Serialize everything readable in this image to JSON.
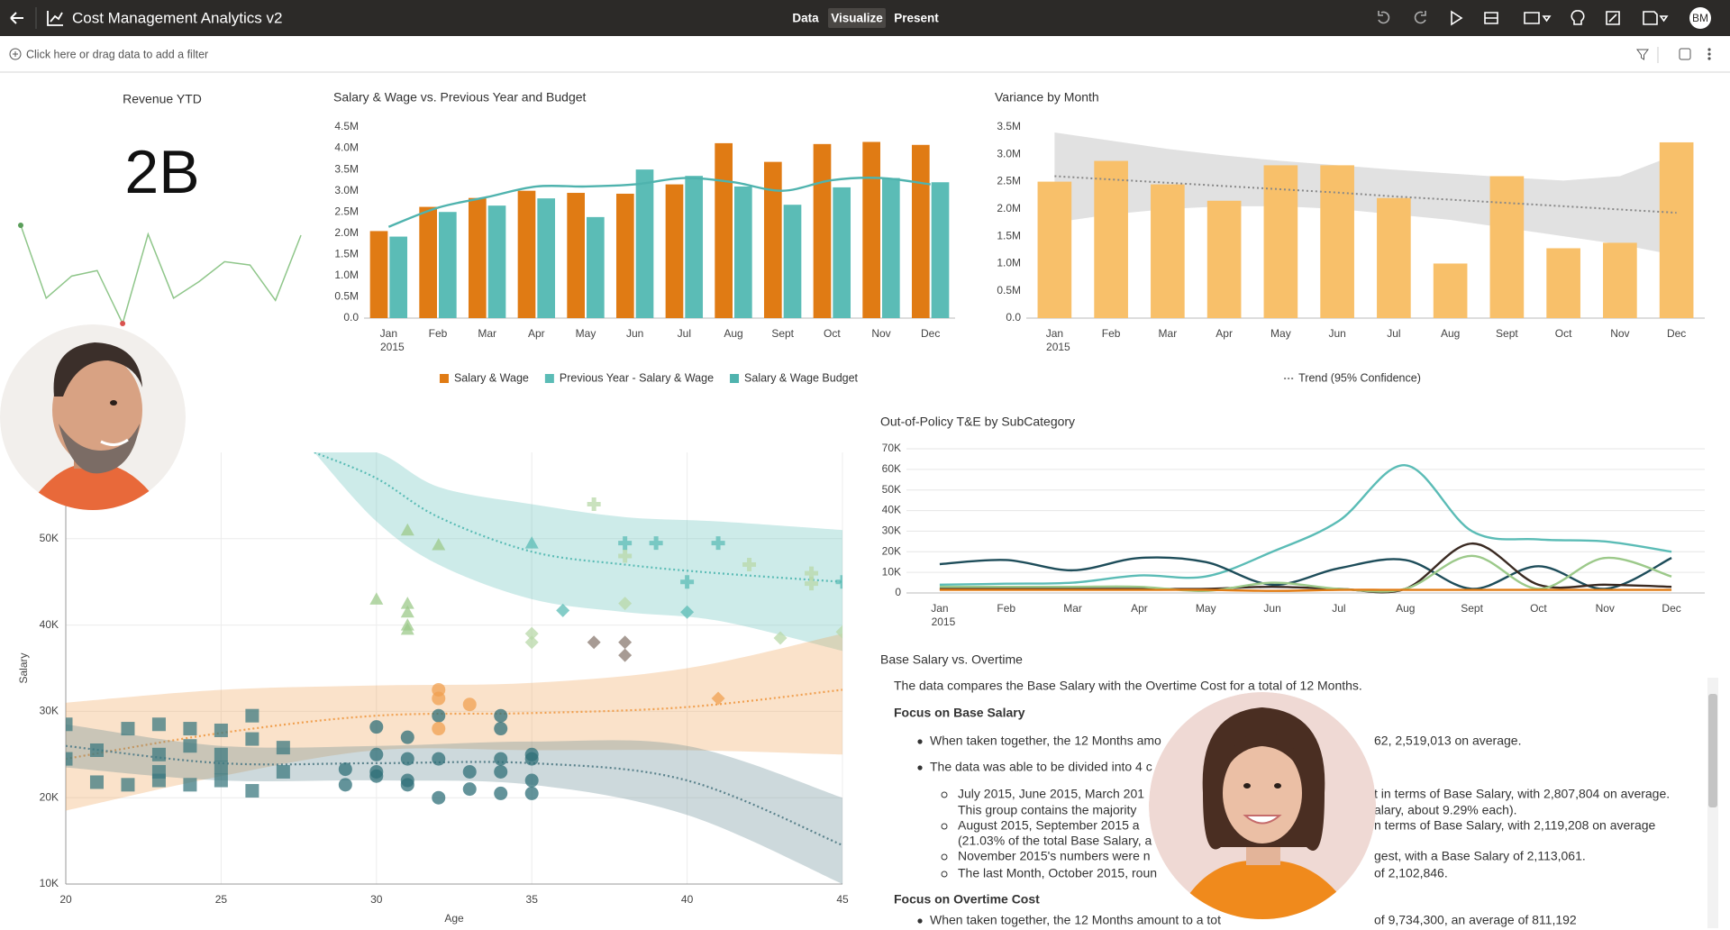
{
  "header": {
    "title": "Cost Management Analytics v2",
    "tabs": [
      "Data",
      "Visualize",
      "Present"
    ],
    "active_tab": 1,
    "user": "BM"
  },
  "filter_bar": {
    "placeholder": "Click here or drag data to add a filter"
  },
  "kpi": {
    "title": "Revenue YTD",
    "value": "2B",
    "sparkline": {
      "values": [
        96,
        30,
        50,
        55,
        7,
        88,
        30,
        45,
        63,
        60,
        28,
        87
      ],
      "color": "#8fc68a",
      "start_color": "#5a9e5a",
      "low_color": "#d9534f"
    }
  },
  "chart_data": [
    {
      "type": "combo",
      "title": "Salary & Wage vs. Previous Year and Budget",
      "categories": [
        "Jan",
        "Feb",
        "Mar",
        "Apr",
        "May",
        "Jun",
        "Jul",
        "Aug",
        "Sept",
        "Oct",
        "Nov",
        "Dec"
      ],
      "x_year_label": "2015",
      "ylim": [
        0,
        4500000
      ],
      "yticks": [
        {
          "value": 0,
          "label": "0.0"
        },
        {
          "value": 500000,
          "label": "0.5M"
        },
        {
          "value": 1000000,
          "label": "1.0M"
        },
        {
          "value": 1500000,
          "label": "1.5M"
        },
        {
          "value": 2000000,
          "label": "2.0M"
        },
        {
          "value": 2500000,
          "label": "2.5M"
        },
        {
          "value": 3000000,
          "label": "3.0M"
        },
        {
          "value": 3500000,
          "label": "3.5M"
        },
        {
          "value": 4000000,
          "label": "4.0M"
        },
        {
          "value": 4500000,
          "label": "4.5M"
        }
      ],
      "grid": false,
      "legend": "bottom",
      "series": [
        {
          "name": "Salary & Wage",
          "kind": "bar",
          "color": "#e07b14",
          "values": [
            2050000,
            2620000,
            2830000,
            3000000,
            2950000,
            2930000,
            3150000,
            4120000,
            3680000,
            4100000,
            4150000,
            4080000
          ]
        },
        {
          "name": "Previous Year - Salary & Wage",
          "kind": "bar",
          "color": "#5bbcb6",
          "values": [
            1920000,
            2500000,
            2650000,
            2820000,
            2380000,
            3500000,
            3350000,
            3100000,
            2670000,
            3080000,
            3300000,
            3200000
          ]
        },
        {
          "name": "Salary & Wage Budget",
          "kind": "line",
          "color": "#4fb3ae",
          "values": [
            2150000,
            2600000,
            2850000,
            3100000,
            3100000,
            3150000,
            3300000,
            3200000,
            3000000,
            3250000,
            3300000,
            3150000
          ]
        }
      ]
    },
    {
      "type": "bar",
      "title": "Variance by Month",
      "categories": [
        "Jan",
        "Feb",
        "Mar",
        "Apr",
        "May",
        "Jun",
        "Jul",
        "Aug",
        "Sept",
        "Oct",
        "Nov",
        "Dec"
      ],
      "x_year_label": "2015",
      "ylim": [
        0,
        3500000
      ],
      "yticks": [
        {
          "value": 0,
          "label": "0.0"
        },
        {
          "value": 500000,
          "label": "0.5M"
        },
        {
          "value": 1000000,
          "label": "1.0M"
        },
        {
          "value": 1500000,
          "label": "1.5M"
        },
        {
          "value": 2000000,
          "label": "2.0M"
        },
        {
          "value": 2500000,
          "label": "2.5M"
        },
        {
          "value": 3000000,
          "label": "3.0M"
        },
        {
          "value": 3500000,
          "label": "3.5M"
        }
      ],
      "grid": false,
      "legend": "bottom",
      "series": [
        {
          "kind": "bar",
          "color": "#f8c06a",
          "values": [
            2500000,
            2880000,
            2450000,
            2150000,
            2800000,
            2800000,
            2200000,
            1000000,
            2600000,
            1280000,
            1380000,
            3220000
          ]
        }
      ],
      "trend": {
        "name": "Trend (95% Confidence)",
        "color": "#888888",
        "band_color": "#d9d9d9",
        "values": [
          2600000,
          2540000,
          2480000,
          2420000,
          2360000,
          2300000,
          2230000,
          2170000,
          2110000,
          2050000,
          1990000,
          1930000
        ],
        "lower": [
          1750000,
          1900000,
          2000000,
          2050000,
          2050000,
          2000000,
          1900000,
          1800000,
          1650000,
          1500000,
          1350000,
          1150000
        ],
        "upper": [
          3400000,
          3250000,
          3100000,
          2980000,
          2880000,
          2800000,
          2720000,
          2650000,
          2580000,
          2520000,
          2600000,
          3000000
        ]
      }
    },
    {
      "type": "line",
      "title": "Out-of-Policy T&E by SubCategory",
      "categories": [
        "Jan",
        "Feb",
        "Mar",
        "Apr",
        "May",
        "Jun",
        "Jul",
        "Aug",
        "Sept",
        "Oct",
        "Nov",
        "Dec"
      ],
      "x_year_label": "2015",
      "ylim": [
        0,
        70000
      ],
      "yticks": [
        0,
        {
          "value": 10000,
          "label": "10K"
        },
        {
          "value": 20000,
          "label": "20K"
        },
        {
          "value": 30000,
          "label": "30K"
        },
        {
          "value": 40000,
          "label": "40K"
        },
        {
          "value": 50000,
          "label": "50K"
        },
        {
          "value": 60000,
          "label": "60K"
        },
        {
          "value": 70000,
          "label": "70K"
        }
      ],
      "grid": true,
      "series": [
        {
          "kind": "line",
          "color": "#5bbcb6",
          "values": [
            4000,
            4500,
            5000,
            8500,
            8000,
            20000,
            35000,
            62000,
            30000,
            26000,
            25000,
            20000
          ]
        },
        {
          "kind": "line",
          "color": "#1e4d5a",
          "values": [
            14000,
            16000,
            11000,
            17000,
            15000,
            4000,
            12000,
            16000,
            2000,
            13000,
            2000,
            17000
          ]
        },
        {
          "kind": "line",
          "color": "#3a2a22",
          "values": [
            2000,
            2000,
            2000,
            2000,
            2000,
            3000,
            2000,
            2000,
            24000,
            4000,
            4000,
            3000
          ]
        },
        {
          "kind": "line",
          "color": "#9cc98a",
          "values": [
            3000,
            3000,
            3000,
            3000,
            1000,
            5000,
            2000,
            2000,
            18000,
            2000,
            17000,
            8000
          ]
        },
        {
          "kind": "line",
          "color": "#e07b14",
          "values": [
            1500,
            1500,
            1500,
            1500,
            1500,
            1000,
            1500,
            1500,
            1500,
            1500,
            1500,
            1500
          ]
        }
      ]
    },
    {
      "type": "scatter",
      "x_label": "Age",
      "y_label": "Salary",
      "xlim": [
        20,
        45
      ],
      "ylim": [
        10000,
        60000
      ],
      "xticks": [
        20,
        25,
        30,
        35,
        40,
        45
      ],
      "yticks": [
        {
          "value": 10000,
          "label": "10K"
        },
        {
          "value": 20000,
          "label": "20K"
        },
        {
          "value": 30000,
          "label": "30K"
        },
        {
          "value": 40000,
          "label": "40K"
        },
        {
          "value": 50000,
          "label": "50K"
        }
      ],
      "grid": true,
      "series": [
        {
          "shape": "square",
          "color": "#3d7a80",
          "x": [
            20,
            20,
            21,
            21,
            22,
            22,
            23,
            23,
            23,
            23,
            24,
            24,
            24,
            25,
            25,
            25,
            25,
            26,
            26,
            26,
            27,
            27
          ],
          "y": [
            28500,
            24500,
            25500,
            21800,
            28000,
            21500,
            28500,
            25000,
            23000,
            22000,
            28000,
            26000,
            21500,
            27800,
            25000,
            23500,
            22000,
            29500,
            26800,
            20800,
            25800,
            23000
          ]
        },
        {
          "shape": "circle",
          "color": "#2f6f78",
          "x": [
            30,
            30,
            30,
            30,
            29,
            29,
            31,
            31,
            31,
            31,
            32,
            32,
            32,
            33,
            33,
            34,
            34,
            34,
            34,
            34,
            35,
            35,
            35,
            35
          ],
          "y": [
            28200,
            25000,
            23000,
            22500,
            21500,
            23300,
            27000,
            24500,
            22000,
            21500,
            29500,
            24500,
            20000,
            23000,
            21000,
            29500,
            28000,
            24500,
            23000,
            20500,
            25000,
            24500,
            22000,
            20500
          ]
        },
        {
          "shape": "circle",
          "color": "#f0a050",
          "x": [
            32,
            32,
            32,
            33
          ],
          "y": [
            32500,
            31500,
            28000,
            30800
          ]
        },
        {
          "shape": "triangle",
          "color": "#9cc98a",
          "x": [
            30,
            31,
            31,
            31,
            31,
            31,
            32
          ],
          "y": [
            43000,
            51000,
            42500,
            41500,
            40000,
            39500,
            49300
          ]
        },
        {
          "shape": "triangle",
          "color": "#5bbcb6",
          "x": [
            35
          ],
          "y": [
            49500
          ]
        },
        {
          "shape": "plus",
          "color": "#b8d8a8",
          "x": [
            37,
            38,
            42,
            44,
            44
          ],
          "y": [
            54000,
            48000,
            47000,
            46000,
            44800
          ]
        },
        {
          "shape": "plus",
          "color": "#5bbcb6",
          "x": [
            38,
            39,
            40,
            41,
            45
          ],
          "y": [
            49500,
            49500,
            45000,
            49500,
            45000
          ]
        },
        {
          "shape": "diamond",
          "color": "#5bbcb6",
          "x": [
            36,
            40
          ],
          "y": [
            41700,
            41500
          ]
        },
        {
          "shape": "diamond",
          "color": "#b8d8a8",
          "x": [
            38,
            35,
            35,
            43,
            45
          ],
          "y": [
            42500,
            39000,
            38000,
            38500,
            39200
          ]
        },
        {
          "shape": "diamond",
          "color": "#8a7a70",
          "x": [
            37,
            38,
            38
          ],
          "y": [
            38000,
            38000,
            36500
          ]
        },
        {
          "shape": "diamond",
          "color": "#f0a050",
          "x": [
            41
          ],
          "y": [
            31500
          ]
        }
      ],
      "trends": [
        {
          "color": "#5bbcb6",
          "x": [
            28,
            30,
            32,
            35,
            38,
            41,
            45
          ],
          "values": [
            60000,
            57000,
            52500,
            48500,
            47000,
            46000,
            45000
          ],
          "lower": [
            60000,
            52000,
            47000,
            43000,
            41500,
            40500,
            37000
          ],
          "upper": [
            60000,
            60000,
            56000,
            54000,
            52500,
            52000,
            51000
          ]
        },
        {
          "color": "#f0a050",
          "x": [
            20,
            25,
            30,
            35,
            40,
            45
          ],
          "values": [
            24500,
            27500,
            29500,
            29800,
            30500,
            32500
          ],
          "lower": [
            18500,
            22500,
            25500,
            25500,
            25500,
            25000
          ],
          "upper": [
            31000,
            32500,
            33000,
            33300,
            35000,
            39000
          ]
        },
        {
          "color": "#5a828c",
          "x": [
            20,
            25,
            30,
            35,
            40,
            45
          ],
          "values": [
            26000,
            24000,
            24000,
            24000,
            22000,
            14500
          ],
          "lower": [
            23500,
            22000,
            22000,
            21500,
            18000,
            10000
          ],
          "upper": [
            28500,
            26000,
            26000,
            26500,
            26000,
            20000
          ]
        }
      ]
    }
  ],
  "document": {
    "title": "Base Salary vs. Overtime",
    "lines": [
      {
        "style": "p",
        "text": "The data compares the Base Salary with the Overtime Cost for a total of 12 Months."
      },
      {
        "style": "h",
        "text": "Focus on Base Salary"
      },
      {
        "style": "li",
        "text": "When taken together, the 12 Months amo",
        "text_right": "62, 2,519,013 on average."
      },
      {
        "style": "li",
        "text": "The data was able to be divided into 4 c"
      },
      {
        "style": "li2",
        "text": "July 2015, June 2015, March 201",
        "text_right": "t in terms of Base Salary, with 2,807,804 on average."
      },
      {
        "style": "cont",
        "text": "This group contains the majority",
        "text_right": "alary, about 9.29% each)."
      },
      {
        "style": "li2",
        "text": "August 2015, September 2015 a",
        "text_right": "n terms of Base Salary, with 2,119,208 on average"
      },
      {
        "style": "cont",
        "text": "(21.03% of the total Base Salary, a"
      },
      {
        "style": "li2",
        "text": "November 2015's numbers were n",
        "text_right": "gest, with a Base Salary of 2,113,061."
      },
      {
        "style": "li2",
        "text": "The last Month, October 2015, roun",
        "text_right": "of 2,102,846."
      },
      {
        "style": "h",
        "text": "Focus on Overtime Cost"
      },
      {
        "style": "li",
        "text": "When taken together, the 12 Months amount to a tot",
        "text_right": "of 9,734,300, an average of 811,192"
      }
    ]
  }
}
